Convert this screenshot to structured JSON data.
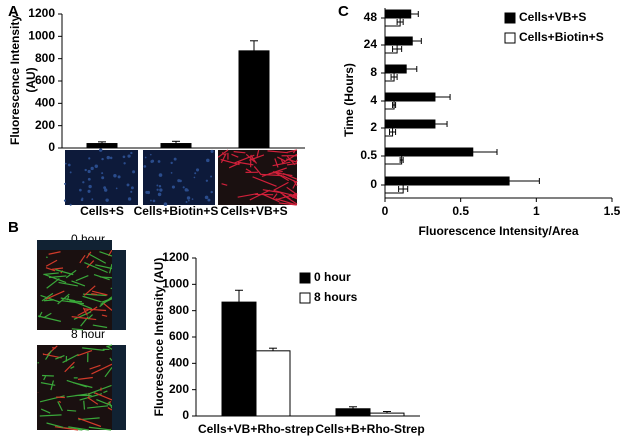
{
  "panel_labels": [
    "A",
    "B",
    "C"
  ],
  "image_labels": [
    "0 hour",
    "8 hour"
  ],
  "chart_data": [
    {
      "type": "bar",
      "ylabel": [
        "Fluorescence Intensity",
        "(AU)"
      ],
      "categories": [
        "Cells+S",
        "Cells+Biotin+S",
        "Cells+VB+S"
      ],
      "values": [
        40,
        40,
        870
      ],
      "errors": [
        15,
        20,
        90
      ],
      "color": "#000000",
      "ylim": [
        0,
        1200
      ],
      "yticks": [
        0,
        200,
        400,
        600,
        800,
        1000,
        1200
      ]
    },
    {
      "type": "bar",
      "ylabel": [
        "Fluorescence Intensity (AU)"
      ],
      "categories": [
        "Cells+VB+Rho-strep",
        "Cells+B+Rho-Strep"
      ],
      "series": [
        {
          "name": "0 hour",
          "color": "#000000",
          "values": [
            865,
            55
          ],
          "errors": [
            90,
            15
          ]
        },
        {
          "name": "8 hours",
          "color": "#ffffff",
          "values": [
            495,
            22
          ],
          "errors": [
            20,
            12
          ]
        }
      ],
      "ylim": [
        0,
        1200
      ],
      "yticks": [
        0,
        200,
        400,
        600,
        800,
        1000,
        1200
      ]
    },
    {
      "type": "hbar",
      "ylabel": [
        "Time (Hours)"
      ],
      "xlabel": "Fluorescence Intensity/Area",
      "categories": [
        "48",
        "24",
        "8",
        "4",
        "2",
        "0.5",
        "0"
      ],
      "series": [
        {
          "name": "Cells+VB+S",
          "color": "#000000",
          "values": [
            0.17,
            0.18,
            0.14,
            0.33,
            0.33,
            0.58,
            0.82
          ],
          "errors": [
            0.05,
            0.06,
            0.07,
            0.1,
            0.08,
            0.16,
            0.2
          ]
        },
        {
          "name": "Cells+Biotin+S",
          "color": "#ffffff",
          "values": [
            0.1,
            0.08,
            0.06,
            0.06,
            0.05,
            0.11,
            0.12
          ],
          "errors": [
            0.02,
            0.03,
            0.02,
            0.01,
            0.02,
            0.01,
            0.03
          ]
        }
      ],
      "xlim": [
        0,
        1.5
      ],
      "xticks": [
        0,
        0.5,
        1,
        1.5
      ]
    }
  ]
}
